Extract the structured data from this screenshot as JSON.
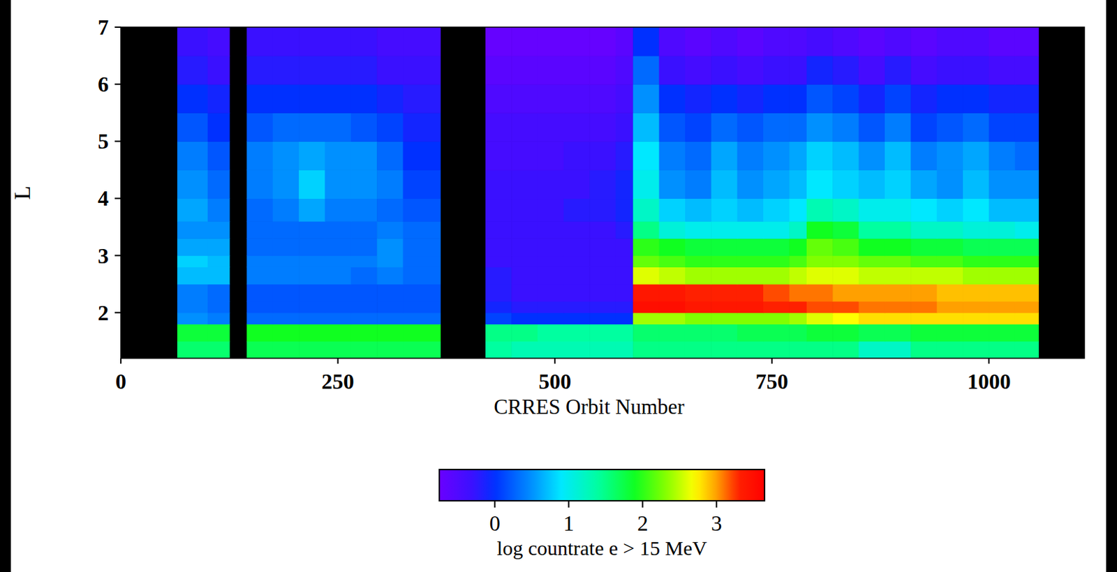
{
  "chart_data": {
    "type": "heatmap",
    "x_label": "CRRES Orbit Number",
    "y_label": "L",
    "xlim": [
      0,
      1110
    ],
    "ylim": [
      1.2,
      7
    ],
    "xticks": [
      0,
      250,
      500,
      750,
      1000
    ],
    "yticks": [
      2,
      3,
      4,
      5,
      6,
      7
    ],
    "x_bins": [
      0,
      65,
      100,
      125,
      145,
      175,
      205,
      235,
      265,
      295,
      325,
      368,
      420,
      450,
      480,
      510,
      540,
      570,
      590,
      620,
      650,
      680,
      710,
      740,
      770,
      790,
      820,
      850,
      880,
      910,
      940,
      970,
      1000,
      1030,
      1057,
      1110
    ],
    "y_bins": [
      1.2,
      1.5,
      1.8,
      2.0,
      2.2,
      2.5,
      2.8,
      3.0,
      3.3,
      3.6,
      4.0,
      4.5,
      5.0,
      5.5,
      6.0,
      6.5,
      7.0
    ],
    "cells": [
      [
        null,
        1.6,
        1.6,
        null,
        1.7,
        1.7,
        1.7,
        1.7,
        1.7,
        1.7,
        1.7,
        null,
        1.4,
        1.3,
        1.3,
        1.3,
        1.3,
        1.3,
        1.5,
        1.5,
        1.5,
        1.5,
        1.5,
        1.5,
        1.5,
        1.5,
        1.5,
        1.2,
        1.2,
        1.5,
        1.5,
        1.5,
        1.5,
        1.5,
        null
      ],
      [
        null,
        1.8,
        1.8,
        null,
        1.9,
        1.9,
        1.9,
        1.9,
        1.9,
        1.9,
        1.9,
        null,
        1.5,
        1.5,
        1.4,
        1.4,
        1.4,
        1.4,
        1.6,
        1.6,
        1.6,
        1.6,
        1.7,
        1.7,
        1.7,
        1.8,
        1.8,
        1.7,
        1.7,
        1.8,
        1.8,
        1.8,
        1.8,
        1.8,
        null
      ],
      [
        null,
        0.5,
        0.4,
        null,
        0.3,
        0.3,
        0.3,
        0.3,
        0.3,
        0.3,
        0.3,
        null,
        0.1,
        0.0,
        0.0,
        0.0,
        0.0,
        0.0,
        2.4,
        2.4,
        2.3,
        2.3,
        2.3,
        2.3,
        2.4,
        2.6,
        2.7,
        2.8,
        2.8,
        2.8,
        2.8,
        2.8,
        2.8,
        2.8,
        null
      ],
      [
        null,
        0.4,
        0.3,
        null,
        0.2,
        0.2,
        0.2,
        0.2,
        0.2,
        0.2,
        0.2,
        null,
        -0.1,
        -0.2,
        -0.2,
        -0.2,
        -0.2,
        -0.2,
        3.5,
        3.5,
        3.4,
        3.4,
        3.4,
        3.3,
        3.3,
        3.2,
        3.2,
        3.1,
        3.1,
        3.1,
        3.0,
        3.0,
        3.0,
        3.0,
        null
      ],
      [
        null,
        0.4,
        0.3,
        null,
        0.2,
        0.2,
        0.2,
        0.2,
        0.2,
        0.2,
        0.2,
        null,
        -0.2,
        -0.3,
        -0.3,
        -0.3,
        -0.3,
        -0.3,
        3.4,
        3.4,
        3.3,
        3.3,
        3.3,
        3.2,
        3.1,
        3.1,
        3.0,
        3.0,
        3.0,
        3.0,
        2.9,
        2.9,
        2.9,
        2.9,
        null
      ],
      [
        null,
        0.7,
        0.7,
        null,
        0.4,
        0.4,
        0.4,
        0.4,
        0.3,
        0.4,
        0.3,
        null,
        -0.2,
        -0.3,
        -0.3,
        -0.3,
        -0.3,
        -0.3,
        2.6,
        2.5,
        2.4,
        2.4,
        2.4,
        2.4,
        2.5,
        2.6,
        2.6,
        2.5,
        2.5,
        2.5,
        2.5,
        2.4,
        2.4,
        2.4,
        null
      ],
      [
        null,
        0.8,
        0.7,
        null,
        0.4,
        0.4,
        0.4,
        0.4,
        0.4,
        0.5,
        0.3,
        null,
        -0.3,
        -0.3,
        -0.3,
        -0.3,
        -0.3,
        -0.3,
        2.2,
        2.1,
        2.0,
        2.0,
        2.0,
        2.0,
        2.1,
        2.3,
        2.3,
        2.2,
        2.2,
        2.1,
        2.1,
        2.0,
        2.0,
        2.0,
        null
      ],
      [
        null,
        0.6,
        0.6,
        null,
        0.3,
        0.3,
        0.3,
        0.3,
        0.3,
        0.5,
        0.3,
        null,
        -0.3,
        -0.3,
        -0.3,
        -0.3,
        -0.3,
        -0.3,
        2.0,
        1.9,
        1.8,
        1.8,
        1.8,
        1.8,
        1.9,
        2.2,
        2.1,
        1.9,
        1.9,
        1.8,
        1.8,
        1.7,
        1.7,
        1.7,
        null
      ],
      [
        null,
        0.5,
        0.5,
        null,
        0.3,
        0.3,
        0.3,
        0.3,
        0.3,
        0.4,
        0.3,
        null,
        -0.3,
        -0.3,
        -0.3,
        -0.3,
        -0.3,
        -0.2,
        1.5,
        1.1,
        1.0,
        1.0,
        1.0,
        1.0,
        1.2,
        1.9,
        1.8,
        1.4,
        1.4,
        1.2,
        1.2,
        1.1,
        1.1,
        1.0,
        null
      ],
      [
        null,
        0.6,
        0.4,
        null,
        0.3,
        0.4,
        0.6,
        0.4,
        0.4,
        0.3,
        0.2,
        null,
        -0.3,
        -0.3,
        -0.3,
        -0.2,
        -0.2,
        -0.1,
        1.2,
        0.8,
        0.7,
        0.8,
        0.7,
        0.8,
        0.9,
        1.3,
        1.2,
        1.0,
        1.0,
        0.9,
        0.8,
        0.9,
        0.7,
        0.7,
        null
      ],
      [
        null,
        0.5,
        0.3,
        null,
        0.4,
        0.5,
        0.8,
        0.5,
        0.5,
        0.4,
        0.1,
        null,
        -0.3,
        -0.3,
        -0.3,
        -0.3,
        -0.2,
        -0.1,
        1.0,
        0.5,
        0.4,
        0.7,
        0.5,
        0.6,
        0.7,
        0.9,
        0.8,
        0.7,
        0.8,
        0.6,
        0.5,
        0.7,
        0.5,
        0.5,
        null
      ],
      [
        null,
        0.4,
        0.2,
        null,
        0.4,
        0.5,
        0.6,
        0.5,
        0.5,
        0.3,
        0.0,
        null,
        -0.4,
        -0.4,
        -0.4,
        -0.3,
        -0.3,
        -0.2,
        0.9,
        0.4,
        0.3,
        0.6,
        0.4,
        0.5,
        0.6,
        0.8,
        0.7,
        0.5,
        0.7,
        0.4,
        0.5,
        0.6,
        0.4,
        0.3,
        null
      ],
      [
        null,
        0.2,
        0.0,
        null,
        0.2,
        0.3,
        0.3,
        0.3,
        0.2,
        0.1,
        -0.1,
        null,
        -0.4,
        -0.4,
        -0.4,
        -0.4,
        -0.4,
        -0.3,
        0.7,
        0.2,
        0.1,
        0.3,
        0.2,
        0.3,
        0.3,
        0.5,
        0.4,
        0.2,
        0.4,
        0.1,
        0.2,
        0.3,
        0.1,
        0.1,
        null
      ],
      [
        null,
        0.0,
        -0.1,
        null,
        0.0,
        0.0,
        0.0,
        0.0,
        0.0,
        -0.1,
        -0.2,
        null,
        -0.5,
        -0.5,
        -0.5,
        -0.5,
        -0.5,
        -0.4,
        0.5,
        0.0,
        -0.1,
        0.0,
        -0.1,
        0.0,
        0.0,
        0.2,
        0.1,
        -0.1,
        0.1,
        -0.1,
        0.0,
        0.0,
        -0.1,
        -0.1,
        null
      ],
      [
        null,
        -0.2,
        -0.3,
        null,
        -0.2,
        -0.2,
        -0.2,
        -0.2,
        -0.2,
        -0.3,
        -0.3,
        null,
        -0.6,
        -0.6,
        -0.6,
        -0.6,
        -0.6,
        -0.5,
        0.3,
        -0.3,
        -0.4,
        -0.3,
        -0.4,
        -0.3,
        -0.3,
        -0.1,
        -0.2,
        -0.4,
        -0.2,
        -0.4,
        -0.3,
        -0.3,
        -0.4,
        -0.4,
        null
      ],
      [
        null,
        -0.3,
        -0.4,
        null,
        -0.3,
        -0.3,
        -0.3,
        -0.3,
        -0.3,
        -0.4,
        -0.4,
        null,
        -0.7,
        -0.7,
        -0.7,
        -0.7,
        -0.7,
        -0.6,
        0.0,
        -0.5,
        -0.6,
        -0.5,
        -0.6,
        -0.5,
        -0.5,
        -0.4,
        -0.5,
        -0.6,
        -0.5,
        -0.6,
        -0.5,
        -0.5,
        -0.6,
        -0.6,
        null
      ]
    ],
    "colorbar": {
      "label": "log countrate e > 15 MeV",
      "range": [
        -0.75,
        3.65
      ],
      "ticks": [
        0,
        1,
        2,
        3
      ]
    }
  }
}
